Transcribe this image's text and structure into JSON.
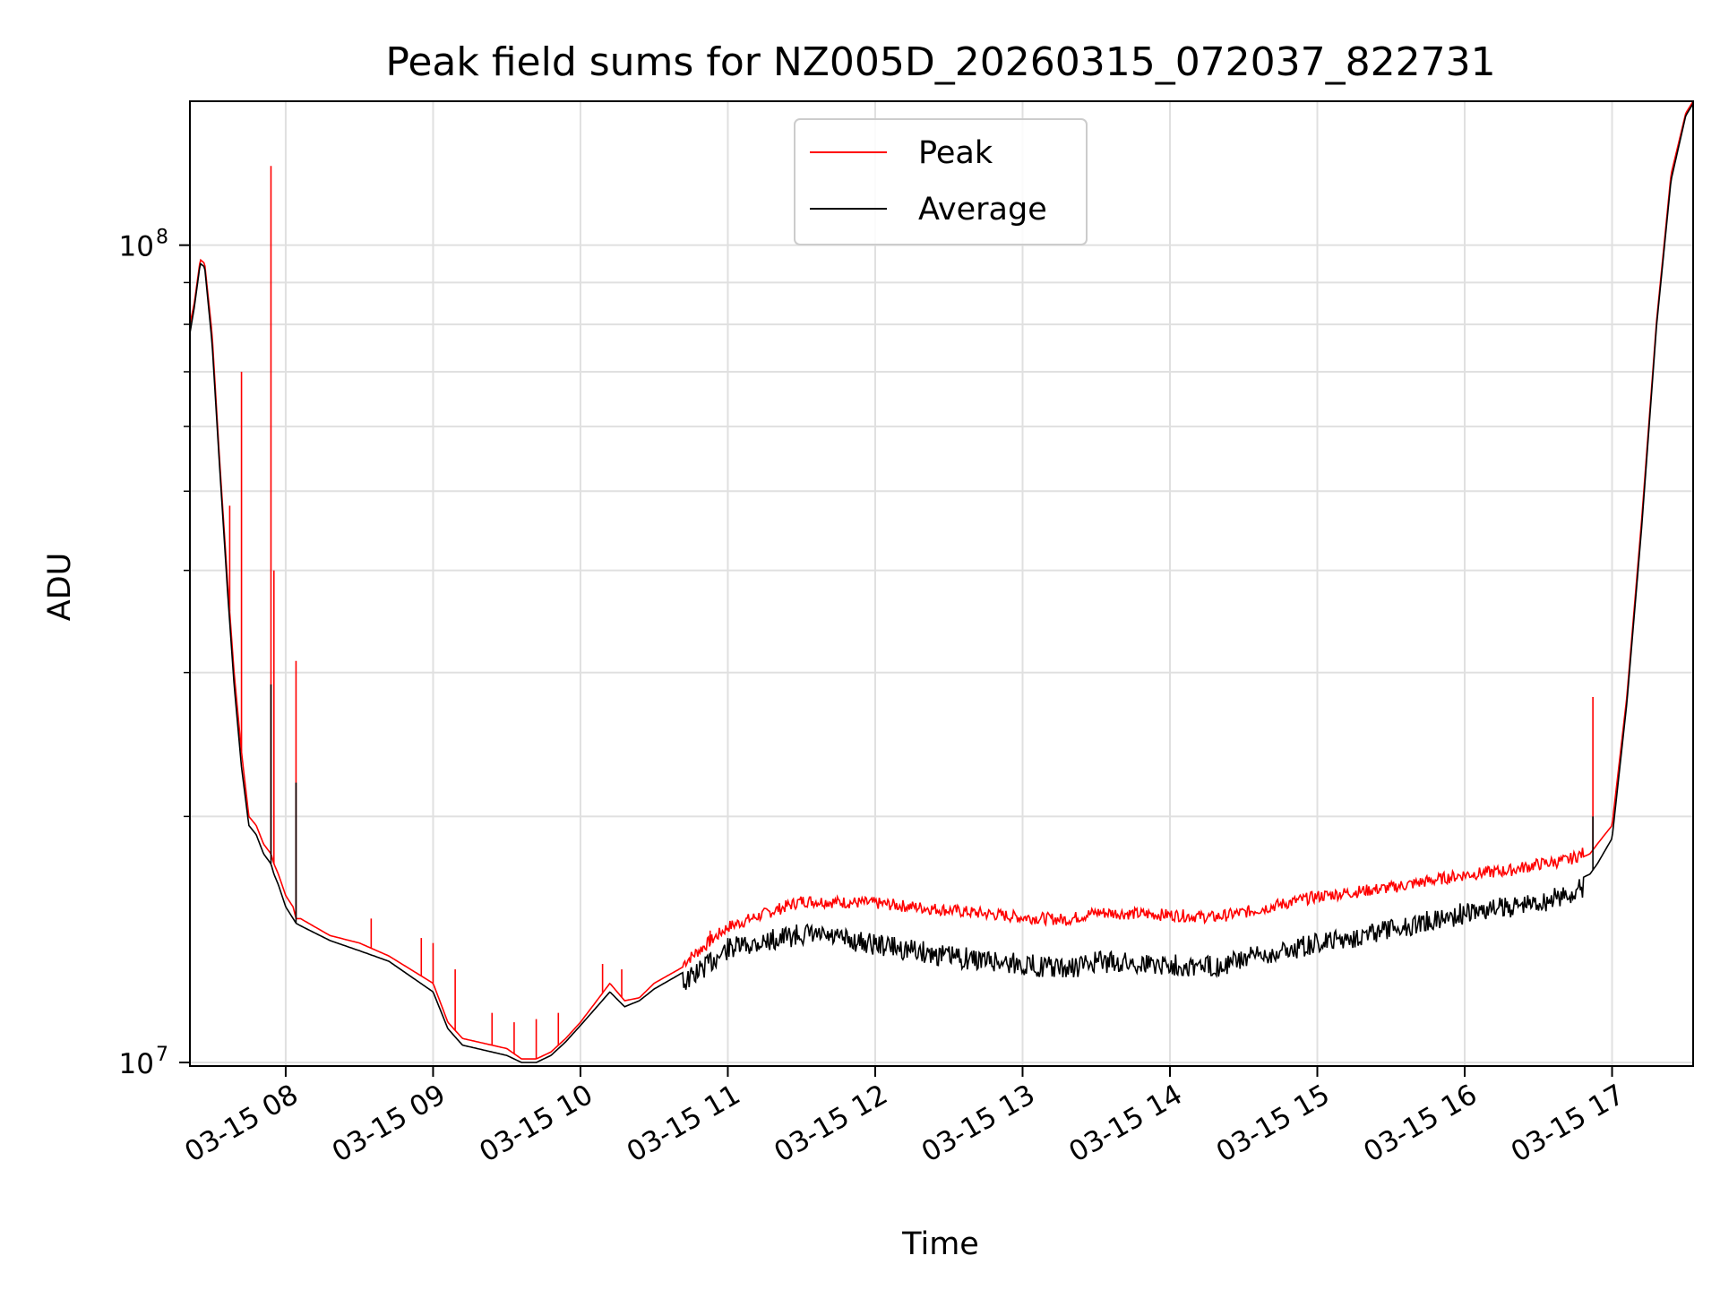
{
  "chart_data": {
    "type": "line",
    "title": "Peak field sums for NZ005D_20260315_072037_822731",
    "xlabel": "Time",
    "ylabel": "ADU",
    "yscale": "log",
    "ylim": [
      9900000.0,
      150000000.0
    ],
    "xlim_hours": [
      7.35,
      17.55
    ],
    "grid": true,
    "legend": {
      "location": "top-center",
      "entries": [
        "Peak",
        "Average"
      ]
    },
    "x_ticks": [
      {
        "label": "03-15 08",
        "hour": 8
      },
      {
        "label": "03-15 09",
        "hour": 9
      },
      {
        "label": "03-15 10",
        "hour": 10
      },
      {
        "label": "03-15 11",
        "hour": 11
      },
      {
        "label": "03-15 12",
        "hour": 12
      },
      {
        "label": "03-15 13",
        "hour": 13
      },
      {
        "label": "03-15 14",
        "hour": 14
      },
      {
        "label": "03-15 15",
        "hour": 15
      },
      {
        "label": "03-15 16",
        "hour": 16
      },
      {
        "label": "03-15 17",
        "hour": 17
      }
    ],
    "y_ticks": [
      {
        "base": "10",
        "exp": "7",
        "value": 10000000
      },
      {
        "base": "10",
        "exp": "8",
        "value": 100000000
      }
    ],
    "series": [
      {
        "name": "Peak",
        "color": "#ff0000",
        "x": [
          7.35,
          7.38,
          7.42,
          7.45,
          7.5,
          7.55,
          7.6,
          7.65,
          7.7,
          7.75,
          7.8,
          7.85,
          7.9,
          7.92,
          7.95,
          8.0,
          8.05,
          8.07,
          8.1,
          8.3,
          8.5,
          8.7,
          9.0,
          9.1,
          9.2,
          9.3,
          9.5,
          9.6,
          9.7,
          9.8,
          9.9,
          10.0,
          10.2,
          10.3,
          10.4,
          10.5,
          10.7,
          11.0,
          11.5,
          12.0,
          12.5,
          13.0,
          13.3,
          13.5,
          14.0,
          14.3,
          14.5,
          15.0,
          15.5,
          16.0,
          16.3,
          16.5,
          16.7,
          16.85,
          16.9,
          17.0,
          17.1,
          17.2,
          17.3,
          17.4,
          17.5,
          17.55
        ],
        "y": [
          80000000.0,
          85000000.0,
          96000000.0,
          95000000.0,
          78000000.0,
          55000000.0,
          40000000.0,
          30000000.0,
          24000000.0,
          20000000.0,
          19500000.0,
          18500000.0,
          18000000.0,
          17500000.0,
          17000000.0,
          16000000.0,
          15500000.0,
          15000000.0,
          15000000.0,
          14300000.0,
          14000000.0,
          13500000.0,
          12500000.0,
          11200000.0,
          10700000.0,
          10600000.0,
          10400000.0,
          10100000.0,
          10100000.0,
          10300000.0,
          10700000.0,
          11200000.0,
          12500000.0,
          11900000.0,
          12000000.0,
          12500000.0,
          13100000.0,
          14500000.0,
          15600000.0,
          15500000.0,
          15200000.0,
          14900000.0,
          14800000.0,
          15100000.0,
          15000000.0,
          14900000.0,
          15100000.0,
          15800000.0,
          16200000.0,
          16800000.0,
          17000000.0,
          17300000.0,
          17500000.0,
          18000000.0,
          18500000.0,
          19500000.0,
          28000000.0,
          46000000.0,
          80000000.0,
          122000000.0,
          145000000.0,
          150000000.0
        ],
        "spikes": [
          {
            "hour": 7.9,
            "value": 125000000.0
          },
          {
            "hour": 7.92,
            "value": 40000000.0
          },
          {
            "hour": 8.07,
            "value": 31000000.0
          },
          {
            "hour": 7.7,
            "value": 70000000.0
          },
          {
            "hour": 7.62,
            "value": 48000000.0
          },
          {
            "hour": 16.87,
            "value": 28000000.0
          },
          {
            "hour": 8.58,
            "value": 15000000.0
          },
          {
            "hour": 8.92,
            "value": 14200000.0
          },
          {
            "hour": 9.0,
            "value": 14000000.0
          },
          {
            "hour": 9.15,
            "value": 13000000.0
          },
          {
            "hour": 9.4,
            "value": 11500000.0
          },
          {
            "hour": 9.55,
            "value": 11200000.0
          },
          {
            "hour": 9.7,
            "value": 11300000.0
          },
          {
            "hour": 9.85,
            "value": 11500000.0
          },
          {
            "hour": 10.15,
            "value": 13200000.0
          },
          {
            "hour": 10.28,
            "value": 13000000.0
          },
          {
            "hour": 10.88,
            "value": 14500000.0
          }
        ]
      },
      {
        "name": "Average",
        "color": "#000000",
        "x": [
          7.35,
          7.38,
          7.42,
          7.45,
          7.5,
          7.55,
          7.6,
          7.65,
          7.7,
          7.75,
          7.8,
          7.85,
          7.9,
          7.92,
          7.95,
          8.0,
          8.05,
          8.07,
          8.1,
          8.3,
          8.5,
          8.7,
          9.0,
          9.1,
          9.2,
          9.3,
          9.5,
          9.6,
          9.7,
          9.8,
          9.9,
          10.0,
          10.2,
          10.3,
          10.4,
          10.5,
          10.7,
          11.0,
          11.5,
          12.0,
          12.5,
          13.0,
          13.3,
          13.5,
          14.0,
          14.3,
          14.5,
          15.0,
          15.5,
          16.0,
          16.3,
          16.5,
          16.7,
          16.85,
          16.9,
          17.0,
          17.1,
          17.2,
          17.3,
          17.4,
          17.5,
          17.55
        ],
        "y": [
          78000000.0,
          84000000.0,
          95000000.0,
          94000000.0,
          76000000.0,
          54000000.0,
          39000000.0,
          29000000.0,
          23000000.0,
          19500000.0,
          19000000.0,
          18000000.0,
          17500000.0,
          17000000.0,
          16500000.0,
          15500000.0,
          15000000.0,
          14800000.0,
          14700000.0,
          14100000.0,
          13700000.0,
          13300000.0,
          12200000.0,
          11000000.0,
          10500000.0,
          10400000.0,
          10200000.0,
          10000000.0,
          10000000.0,
          10200000.0,
          10600000.0,
          11100000.0,
          12200000.0,
          11700000.0,
          11900000.0,
          12300000.0,
          12900000.0,
          14200000.0,
          14800000.0,
          14400000.0,
          13900000.0,
          13600000.0,
          13400000.0,
          13700000.0,
          13600000.0,
          13500000.0,
          13800000.0,
          14400000.0,
          15000000.0,
          15700000.0,
          16000000.0,
          16200000.0,
          16500000.0,
          17000000.0,
          17500000.0,
          18800000.0,
          27500000.0,
          45000000.0,
          79000000.0,
          120000000.0,
          144000000.0,
          149000000.0
        ],
        "spikes": [
          {
            "hour": 7.9,
            "value": 29000000.0
          },
          {
            "hour": 8.07,
            "value": 22000000.0
          },
          {
            "hour": 16.87,
            "value": 20000000.0
          }
        ]
      }
    ]
  }
}
